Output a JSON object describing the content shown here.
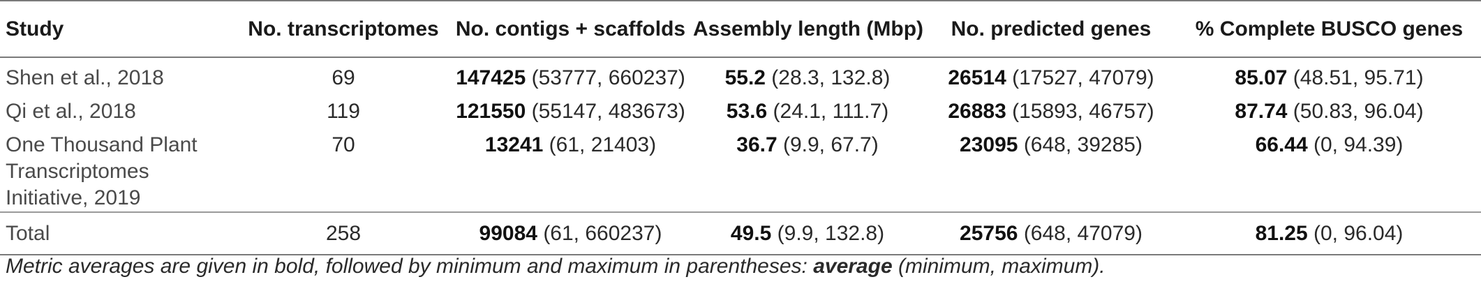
{
  "table": {
    "headers": [
      "Study",
      "No. transcriptomes",
      "No. contigs + scaffolds",
      "Assembly length (Mbp)",
      "No. predicted genes",
      "% Complete BUSCO genes"
    ],
    "rows": [
      {
        "study": "Shen et al., 2018",
        "transcriptomes": "69",
        "contigs": {
          "avg": "147425",
          "range": " (53777, 660237)"
        },
        "length": {
          "avg": "55.2",
          "range": " (28.3, 132.8)"
        },
        "genes": {
          "avg": "26514",
          "range": " (17527, 47079)"
        },
        "busco": {
          "avg": "85.07",
          "range": " (48.51, 95.71)"
        }
      },
      {
        "study": "Qi et al., 2018",
        "transcriptomes": "119",
        "contigs": {
          "avg": "121550",
          "range": " (55147, 483673)"
        },
        "length": {
          "avg": "53.6",
          "range": " (24.1, 111.7)"
        },
        "genes": {
          "avg": "26883",
          "range": " (15893, 46757)"
        },
        "busco": {
          "avg": "87.74",
          "range": " (50.83, 96.04)"
        }
      },
      {
        "study": "One Thousand Plant Transcriptomes Initiative, 2019",
        "transcriptomes": "70",
        "contigs": {
          "avg": "13241",
          "range": " (61, 21403)"
        },
        "length": {
          "avg": "36.7",
          "range": " (9.9, 67.7)"
        },
        "genes": {
          "avg": "23095",
          "range": " (648, 39285)"
        },
        "busco": {
          "avg": "66.44",
          "range": " (0, 94.39)"
        }
      }
    ],
    "total": {
      "study": "Total",
      "transcriptomes": "258",
      "contigs": {
        "avg": "99084",
        "range": " (61, 660237)"
      },
      "length": {
        "avg": "49.5",
        "range": " (9.9, 132.8)"
      },
      "genes": {
        "avg": "25756",
        "range": " (648, 47079)"
      },
      "busco": {
        "avg": "81.25",
        "range": " (0, 96.04)"
      }
    }
  },
  "footnote": {
    "prefix": "Metric averages are given in bold, followed by minimum and maximum in parentheses: ",
    "bold": "average",
    "suffix": " (minimum, maximum)."
  }
}
